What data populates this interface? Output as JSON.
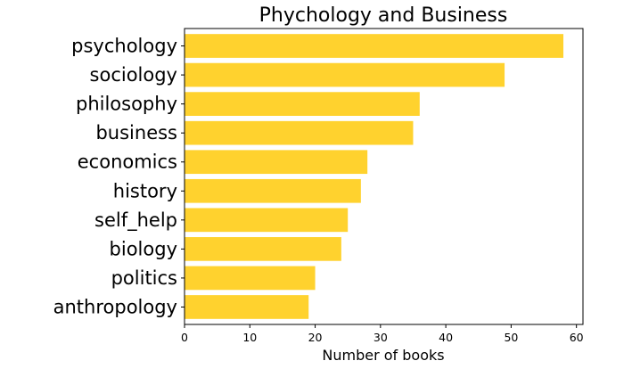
{
  "chart_data": {
    "type": "bar",
    "orientation": "horizontal",
    "title": "Phychology and Business",
    "xlabel": "Number of books",
    "ylabel": "",
    "categories": [
      "psychology",
      "sociology",
      "philosophy",
      "business",
      "economics",
      "history",
      "self_help",
      "biology",
      "politics",
      "anthropology"
    ],
    "values": [
      58,
      49,
      36,
      35,
      28,
      27,
      25,
      24,
      20,
      19
    ],
    "xlim": [
      0,
      61
    ],
    "xticks": [
      0,
      10,
      20,
      30,
      40,
      50,
      60
    ],
    "grid": false,
    "bar_color": "#FFD22E"
  }
}
